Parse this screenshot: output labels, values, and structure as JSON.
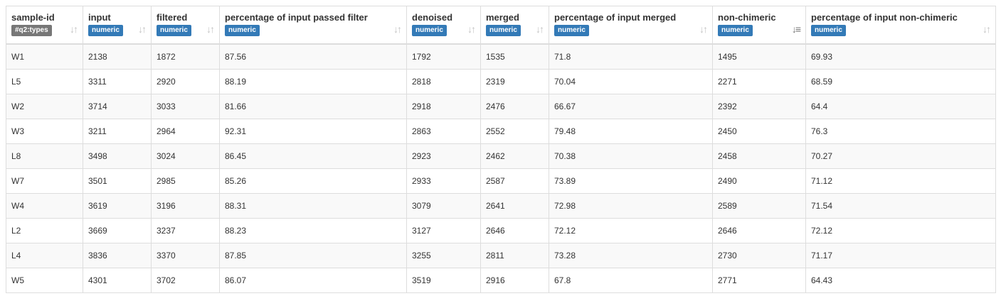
{
  "columns": [
    {
      "name": "sample-id",
      "badge": "#q2:types",
      "badge_kind": "types",
      "sort_icon": "sort-both-icon"
    },
    {
      "name": "input",
      "badge": "numeric",
      "badge_kind": "numeric",
      "sort_icon": "sort-both-icon"
    },
    {
      "name": "filtered",
      "badge": "numeric",
      "badge_kind": "numeric",
      "sort_icon": "sort-both-icon"
    },
    {
      "name": "percentage of input passed filter",
      "badge": "numeric",
      "badge_kind": "numeric",
      "sort_icon": "sort-both-icon"
    },
    {
      "name": "denoised",
      "badge": "numeric",
      "badge_kind": "numeric",
      "sort_icon": "sort-both-icon"
    },
    {
      "name": "merged",
      "badge": "numeric",
      "badge_kind": "numeric",
      "sort_icon": "sort-both-icon"
    },
    {
      "name": "percentage of input merged",
      "badge": "numeric",
      "badge_kind": "numeric",
      "sort_icon": "sort-both-icon"
    },
    {
      "name": "non-chimeric",
      "badge": "numeric",
      "badge_kind": "numeric",
      "sort_icon": "sort-numeric-asc-icon",
      "sorted": "ascending"
    },
    {
      "name": "percentage of input non-chimeric",
      "badge": "numeric",
      "badge_kind": "numeric",
      "sort_icon": "sort-both-icon"
    }
  ],
  "rows": [
    [
      "W1",
      "2138",
      "1872",
      "87.56",
      "1792",
      "1535",
      "71.8",
      "1495",
      "69.93"
    ],
    [
      "L5",
      "3311",
      "2920",
      "88.19",
      "2818",
      "2319",
      "70.04",
      "2271",
      "68.59"
    ],
    [
      "W2",
      "3714",
      "3033",
      "81.66",
      "2918",
      "2476",
      "66.67",
      "2392",
      "64.4"
    ],
    [
      "W3",
      "3211",
      "2964",
      "92.31",
      "2863",
      "2552",
      "79.48",
      "2450",
      "76.3"
    ],
    [
      "L8",
      "3498",
      "3024",
      "86.45",
      "2923",
      "2462",
      "70.38",
      "2458",
      "70.27"
    ],
    [
      "W7",
      "3501",
      "2985",
      "85.26",
      "2933",
      "2587",
      "73.89",
      "2490",
      "71.12"
    ],
    [
      "W4",
      "3619",
      "3196",
      "88.31",
      "3079",
      "2641",
      "72.98",
      "2589",
      "71.54"
    ],
    [
      "L2",
      "3669",
      "3237",
      "88.23",
      "3127",
      "2646",
      "72.12",
      "2646",
      "72.12"
    ],
    [
      "L4",
      "3836",
      "3370",
      "87.85",
      "3255",
      "2811",
      "73.28",
      "2730",
      "71.17"
    ],
    [
      "W5",
      "4301",
      "3702",
      "86.07",
      "3519",
      "2916",
      "67.8",
      "2771",
      "64.43"
    ]
  ],
  "colors": {
    "numeric_badge": "#337ab7",
    "types_badge": "#777777",
    "stripe": "#f9f9f9",
    "border": "#dddddd"
  }
}
